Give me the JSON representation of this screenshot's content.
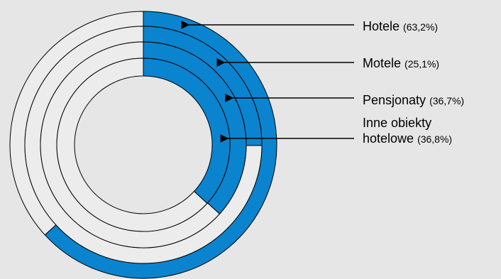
{
  "chart_data": {
    "type": "radial-bar",
    "unit": "%",
    "colors": {
      "fill": "#0a84cf",
      "track": "#ececec",
      "stroke": "#000000"
    },
    "series": [
      {
        "name": "Hotele",
        "value": 63.2,
        "pct_label": "(63,2%)"
      },
      {
        "name": "Motele",
        "value": 25.1,
        "pct_label": "(25,1%)"
      },
      {
        "name": "Pensjonaty",
        "value": 36.7,
        "pct_label": "(36,7%)"
      },
      {
        "name_lines": [
          "Inne obiekty",
          "hotelowe"
        ],
        "value": 36.8,
        "pct_label": "(36,8%)"
      }
    ]
  }
}
